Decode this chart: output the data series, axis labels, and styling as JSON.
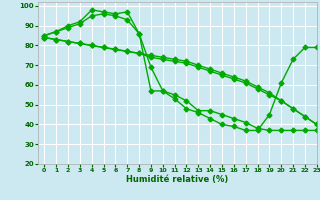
{
  "xlabel": "Humidité relative (%)",
  "background_color": "#cce8f0",
  "grid_color": "#ffffff",
  "line_color": "#00aa00",
  "marker": "D",
  "markersize": 2.5,
  "linewidth": 1.0,
  "ylim": [
    20,
    102
  ],
  "xlim": [
    -0.5,
    23
  ],
  "yticks": [
    20,
    30,
    40,
    50,
    60,
    70,
    80,
    90,
    100
  ],
  "xticks": [
    0,
    1,
    2,
    3,
    4,
    5,
    6,
    7,
    8,
    9,
    10,
    11,
    12,
    13,
    14,
    15,
    16,
    17,
    18,
    19,
    20,
    21,
    22,
    23
  ],
  "series": [
    [
      85,
      87,
      90,
      92,
      98,
      97,
      96,
      97,
      86,
      57,
      57,
      53,
      48,
      46,
      43,
      40,
      39,
      37,
      37,
      45,
      61,
      73,
      79,
      79
    ],
    [
      85,
      87,
      89,
      91,
      95,
      96,
      95,
      93,
      86,
      69,
      57,
      55,
      52,
      47,
      47,
      45,
      43,
      41,
      38,
      37,
      37,
      37,
      37,
      37
    ],
    [
      84,
      83,
      82,
      81,
      80,
      79,
      78,
      77,
      76,
      74,
      73,
      72,
      71,
      69,
      67,
      65,
      63,
      61,
      58,
      55,
      52,
      48,
      44,
      40
    ],
    [
      84,
      83,
      82,
      81,
      80,
      79,
      78,
      77,
      76,
      75,
      74,
      73,
      72,
      70,
      68,
      66,
      64,
      62,
      59,
      56,
      52,
      48,
      44,
      40
    ]
  ]
}
